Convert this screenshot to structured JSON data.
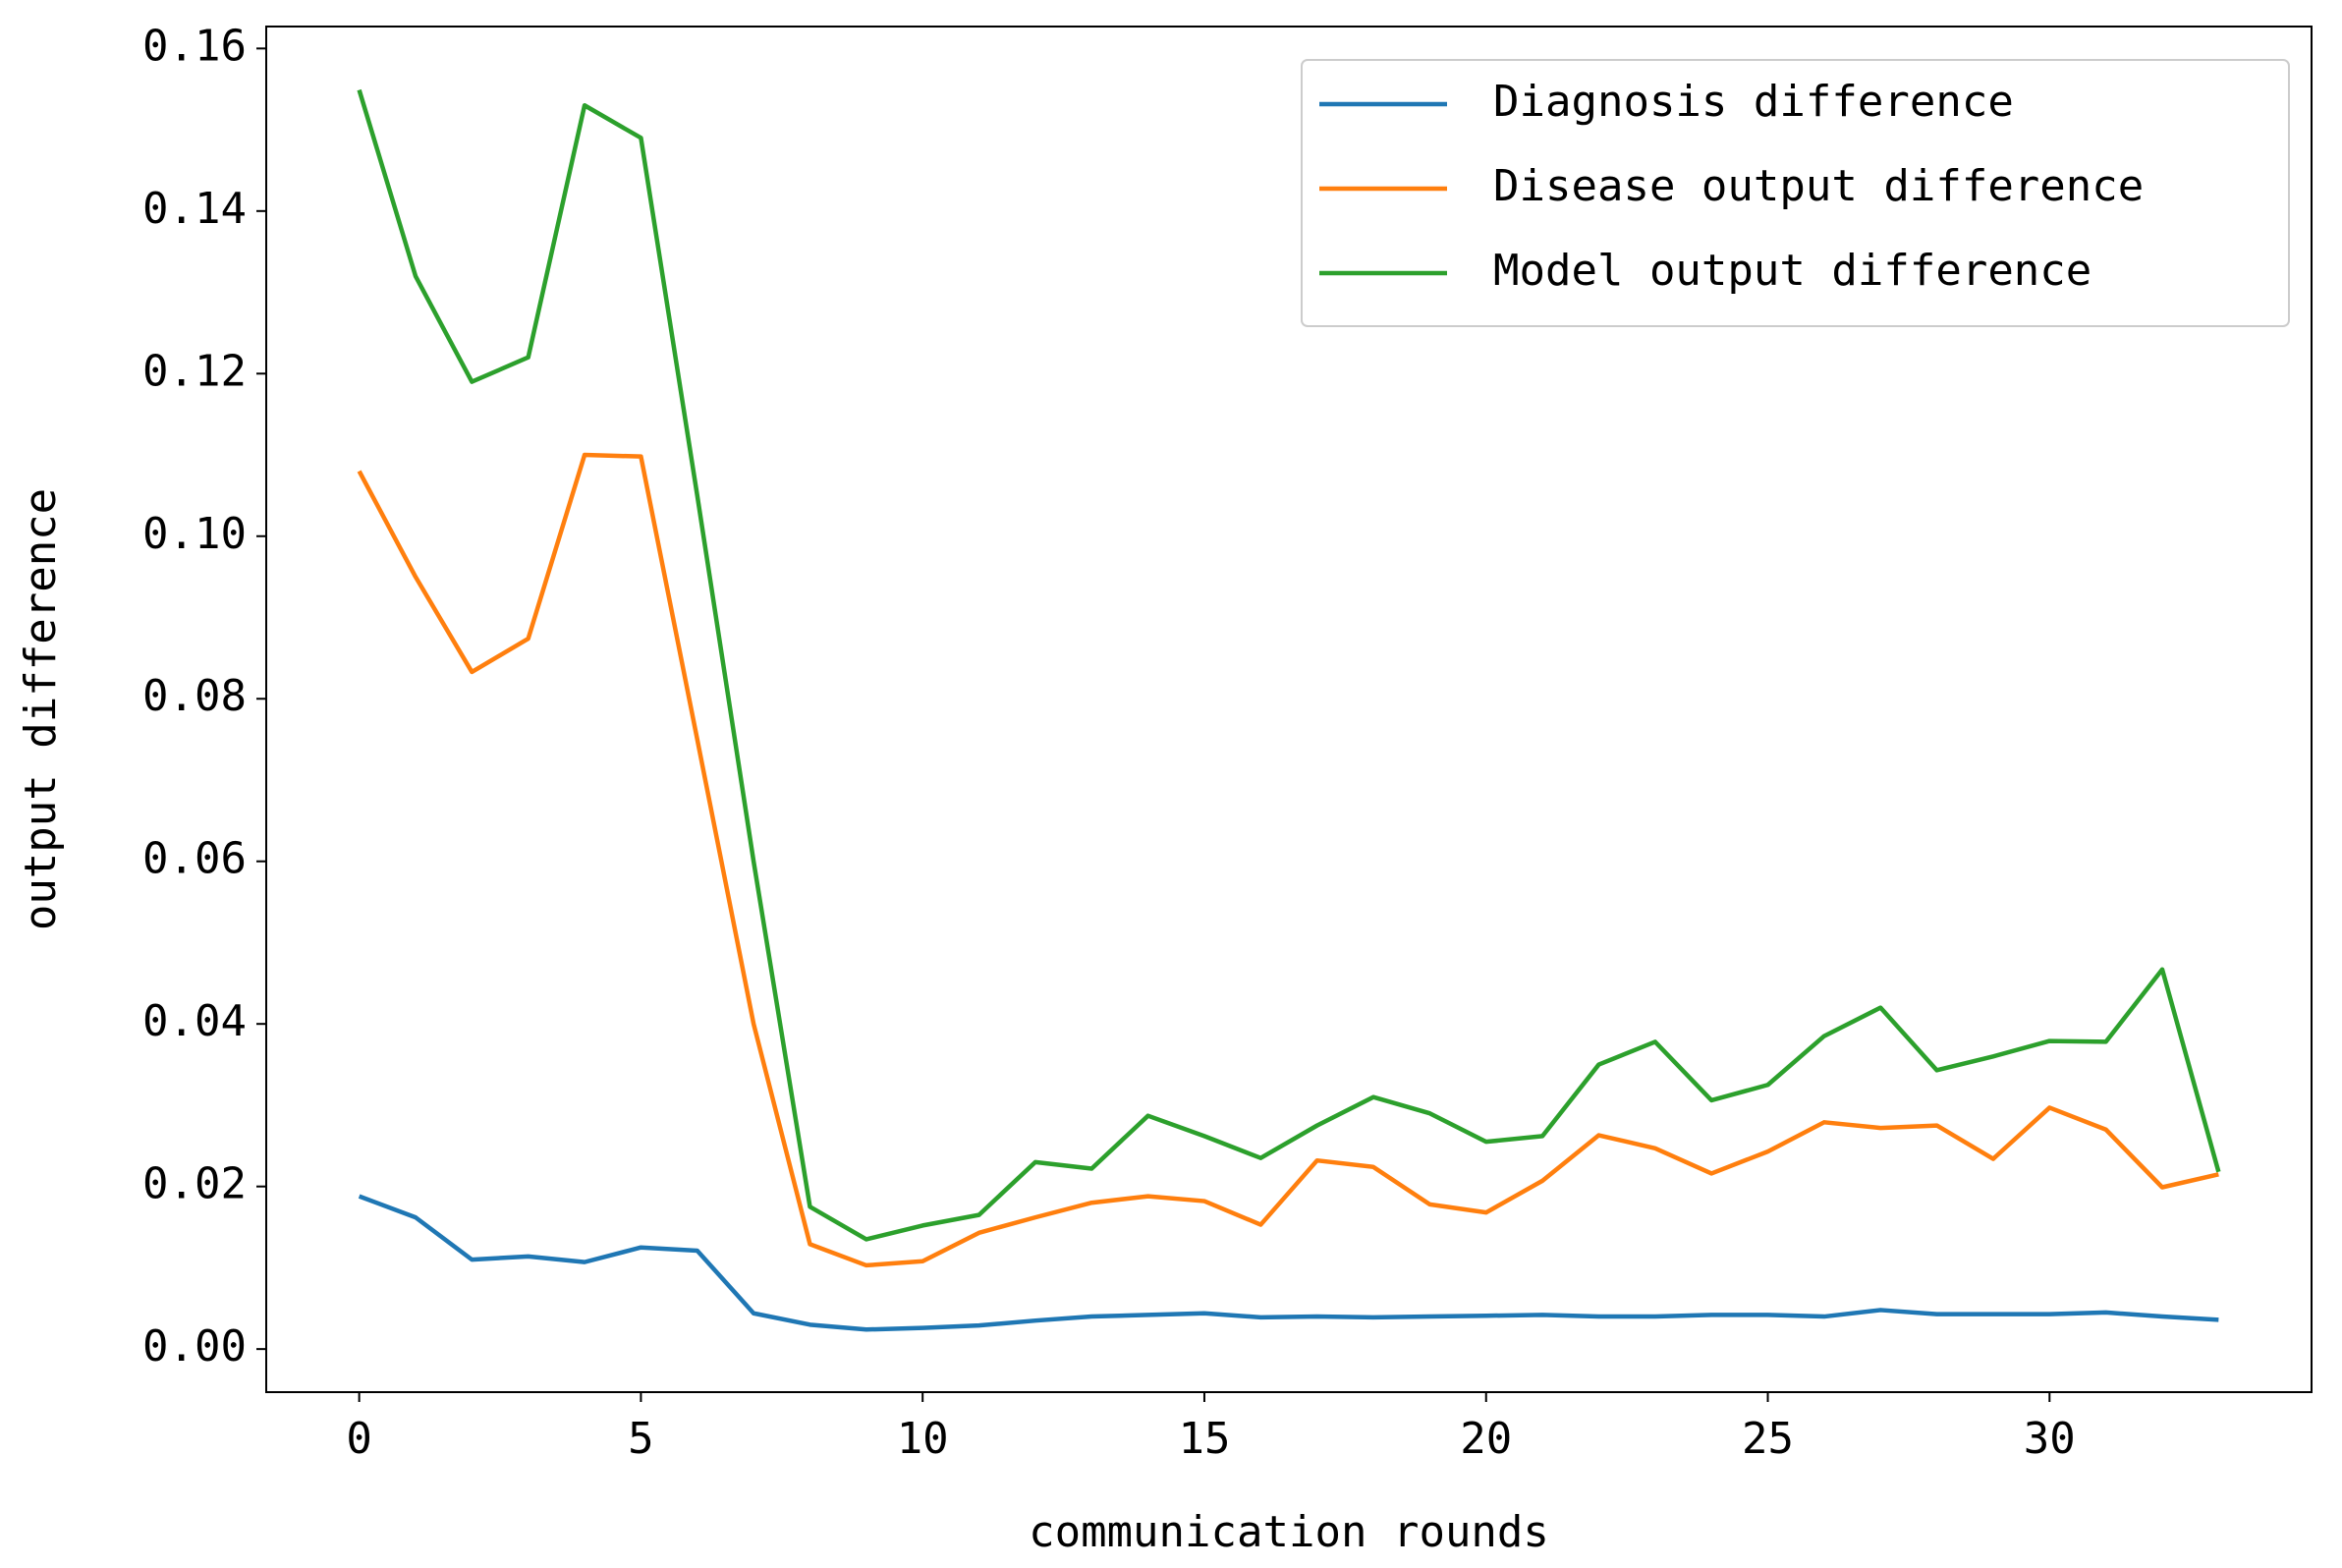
{
  "chart_data": {
    "type": "line",
    "x_label": "communication rounds",
    "y_label": "output difference",
    "x": [
      0,
      1,
      2,
      3,
      4,
      5,
      6,
      7,
      8,
      9,
      10,
      11,
      12,
      13,
      14,
      15,
      16,
      17,
      18,
      19,
      20,
      21,
      22,
      23,
      24,
      25,
      26,
      27,
      28,
      29,
      30,
      31,
      32,
      33
    ],
    "series": [
      {
        "name": "Diagnosis difference",
        "color": "#1f77b4",
        "values": [
          0.0188,
          0.0162,
          0.011,
          0.0114,
          0.0107,
          0.0125,
          0.0121,
          0.0044,
          0.003,
          0.0024,
          0.0026,
          0.0029,
          0.0035,
          0.004,
          0.0042,
          0.0044,
          0.0039,
          0.004,
          0.0039,
          0.004,
          0.0041,
          0.0042,
          0.004,
          0.004,
          0.0042,
          0.0042,
          0.004,
          0.0048,
          0.0043,
          0.0043,
          0.0043,
          0.0045,
          0.004,
          0.0036
        ]
      },
      {
        "name": "Disease output difference",
        "color": "#ff7f0e",
        "values": [
          0.108,
          0.095,
          0.0833,
          0.0874,
          0.11,
          0.1098,
          0.075,
          0.04,
          0.0129,
          0.0103,
          0.0108,
          0.0143,
          0.0162,
          0.018,
          0.0188,
          0.0182,
          0.0153,
          0.0232,
          0.0224,
          0.0178,
          0.0168,
          0.0207,
          0.0263,
          0.0247,
          0.0216,
          0.0243,
          0.0279,
          0.0272,
          0.0275,
          0.0234,
          0.0297,
          0.027,
          0.0199,
          0.0215
        ]
      },
      {
        "name": "Model output difference",
        "color": "#2ca02c",
        "values": [
          0.1549,
          0.132,
          0.119,
          0.122,
          0.153,
          0.149,
          0.105,
          0.06,
          0.0175,
          0.0135,
          0.0152,
          0.0165,
          0.023,
          0.0222,
          0.0287,
          0.0262,
          0.0235,
          0.0275,
          0.031,
          0.029,
          0.0255,
          0.0262,
          0.035,
          0.0378,
          0.0306,
          0.0325,
          0.0385,
          0.042,
          0.0343,
          0.036,
          0.0379,
          0.0378,
          0.0467,
          0.0218
        ]
      }
    ],
    "xlim": [
      -1.65,
      34.65
    ],
    "xticks": [
      0,
      5,
      10,
      15,
      20,
      25,
      30
    ],
    "ylim": [
      -0.0053,
      0.1627
    ],
    "yticks": [
      {
        "value": 0,
        "label": "0.00"
      },
      0.02,
      0.04,
      0.06,
      0.08,
      {
        "value": 0.1,
        "label": "0.10"
      },
      0.12,
      0.14,
      0.16
    ],
    "legend": "upper right"
  }
}
